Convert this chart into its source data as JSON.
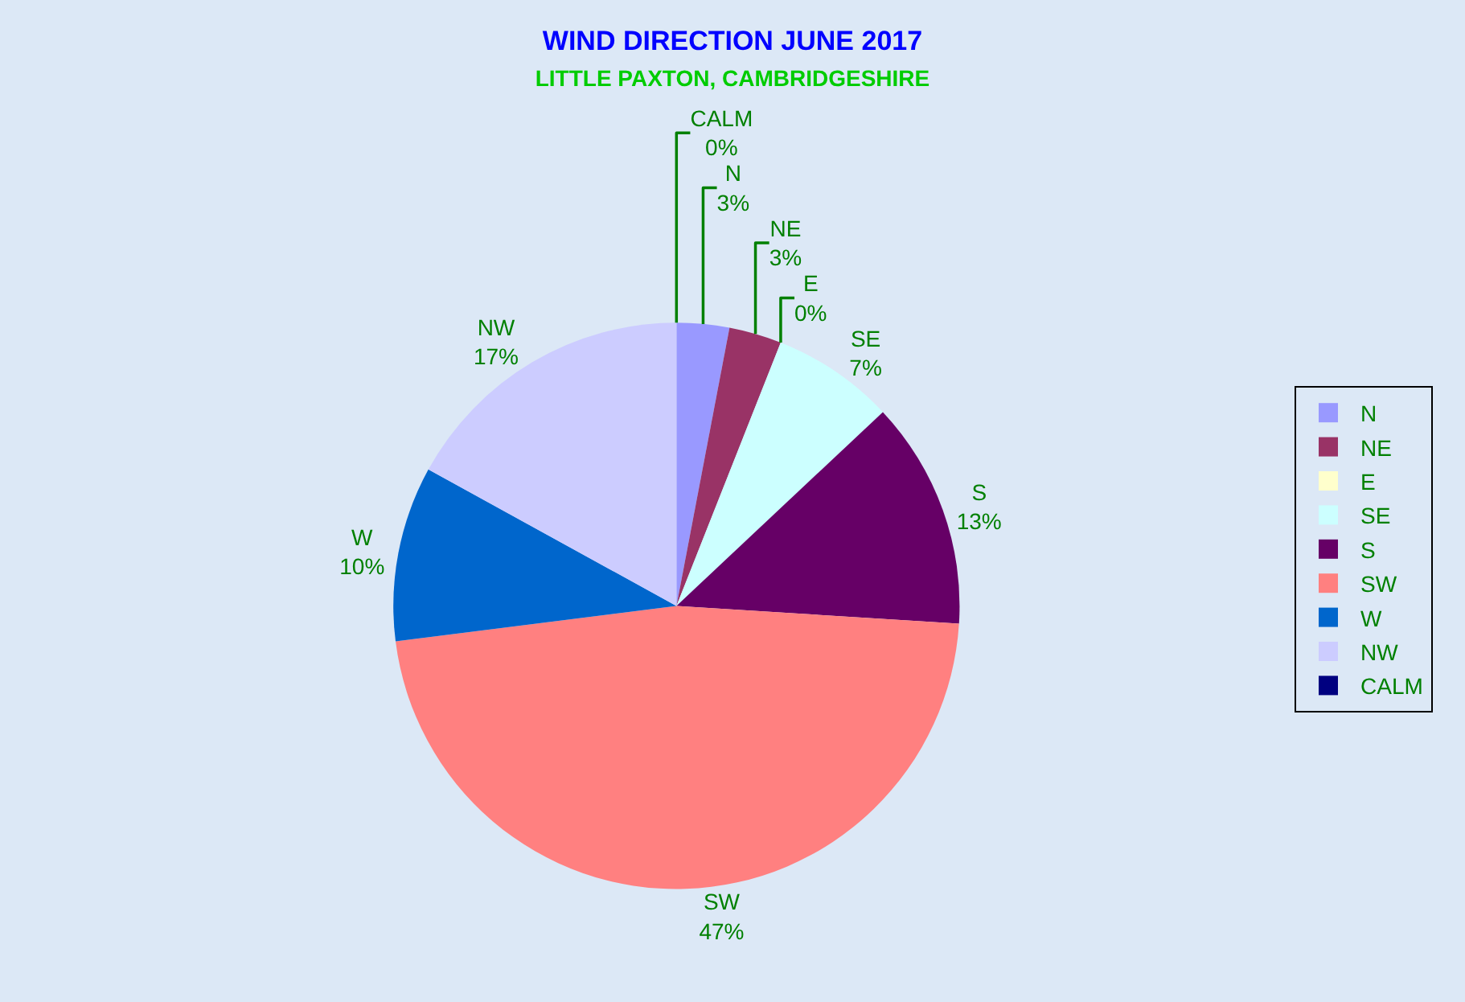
{
  "chart_data": {
    "type": "pie",
    "title": "WIND DIRECTION JUNE 2017",
    "subtitle": "LITTLE PAXTON, CAMBRIDGESHIRE",
    "categories": [
      "N",
      "NE",
      "E",
      "SE",
      "S",
      "SW",
      "W",
      "NW",
      "CALM"
    ],
    "values": [
      3,
      3,
      0,
      7,
      13,
      47,
      10,
      17,
      0
    ],
    "value_labels": [
      "3%",
      "3%",
      "0%",
      "7%",
      "13%",
      "47%",
      "10%",
      "17%",
      "0%"
    ],
    "colors": [
      "#9999ff",
      "#993366",
      "#ffffcc",
      "#ccffff",
      "#660066",
      "#ff8080",
      "#0066cc",
      "#ccccff",
      "#000080"
    ],
    "legend": "right"
  }
}
